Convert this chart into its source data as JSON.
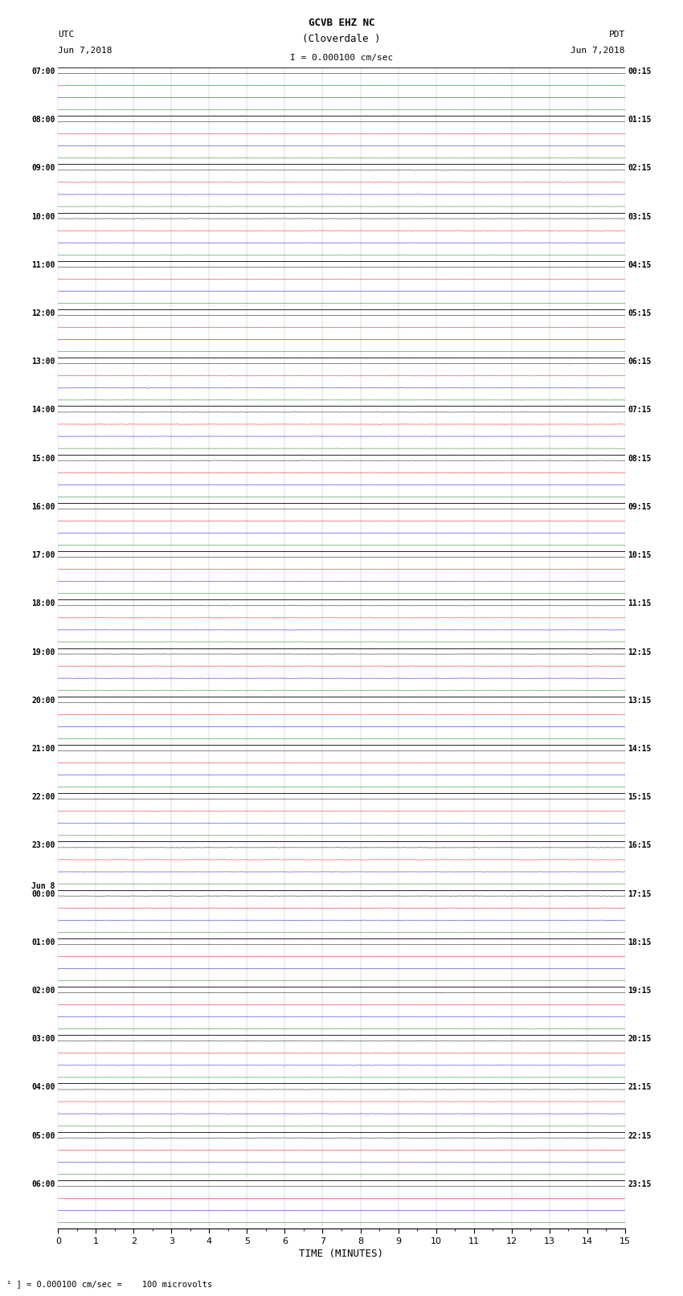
{
  "title_line1": "GCVB EHZ NC",
  "title_line2": "(Cloverdale )",
  "scale_label": "I = 0.000100 cm/sec",
  "xlabel": "TIME (MINUTES)",
  "footnote": "¹ ] = 0.000100 cm/sec =    100 microvolts",
  "num_rows": 96,
  "minutes_per_row": 15,
  "colors": [
    "black",
    "red",
    "blue",
    "green"
  ],
  "traces_per_row": 4,
  "bg_color": "white",
  "plot_bg": "white",
  "left_labels_utc": [
    "07:00",
    "08:00",
    "09:00",
    "10:00",
    "11:00",
    "12:00",
    "13:00",
    "14:00",
    "15:00",
    "16:00",
    "17:00",
    "18:00",
    "19:00",
    "20:00",
    "21:00",
    "22:00",
    "23:00",
    "Jun 8\n00:00",
    "01:00",
    "02:00",
    "03:00",
    "04:00",
    "05:00",
    "06:00"
  ],
  "right_labels_pdt": [
    "00:15",
    "01:15",
    "02:15",
    "03:15",
    "04:15",
    "05:15",
    "06:15",
    "07:15",
    "08:15",
    "09:15",
    "10:15",
    "11:15",
    "12:15",
    "13:15",
    "14:15",
    "15:15",
    "16:15",
    "17:15",
    "18:15",
    "19:15",
    "20:15",
    "21:15",
    "22:15",
    "23:15"
  ],
  "trace_amp": 0.008,
  "noise_amp": [
    0.008,
    0.01,
    0.007,
    0.006
  ]
}
